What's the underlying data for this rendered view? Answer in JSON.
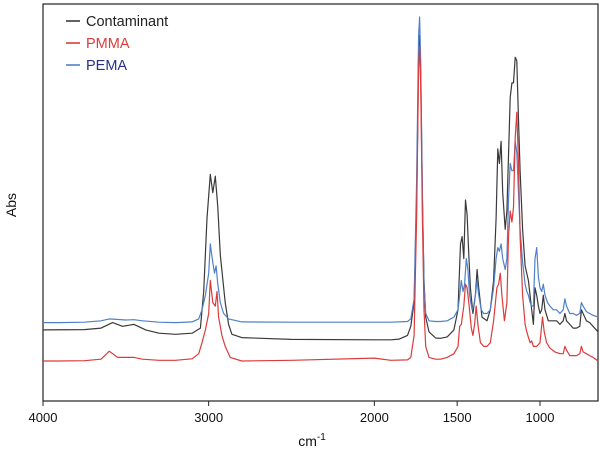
{
  "chart_data": {
    "type": "line",
    "xlabel": "cm",
    "xlabel_sup": "-1",
    "ylabel": "Abs",
    "x_reversed": true,
    "xlim": [
      4000,
      650
    ],
    "ylim": [
      0,
      100
    ],
    "x_ticks": [
      4000,
      3000,
      2000,
      1500,
      1000
    ],
    "x_tick_labels": [
      "4000",
      "3000",
      "2000",
      "1500",
      "1000"
    ],
    "grid": false,
    "legend_position": "top-left",
    "series": [
      {
        "name": "Contaminant",
        "color": "#3a3a3a",
        "points": [
          [
            4000,
            14.5
          ],
          [
            3750,
            14.6
          ],
          [
            3650,
            15
          ],
          [
            3580,
            16.5
          ],
          [
            3520,
            15.5
          ],
          [
            3450,
            16
          ],
          [
            3380,
            14.5
          ],
          [
            3300,
            13.6
          ],
          [
            3200,
            13.3
          ],
          [
            3100,
            13.6
          ],
          [
            3050,
            15
          ],
          [
            3030,
            25
          ],
          [
            3010,
            45
          ],
          [
            2990,
            57
          ],
          [
            2975,
            52
          ],
          [
            2960,
            56.5
          ],
          [
            2945,
            48
          ],
          [
            2930,
            35
          ],
          [
            2900,
            22
          ],
          [
            2880,
            16
          ],
          [
            2860,
            13.3
          ],
          [
            2800,
            12.4
          ],
          [
            2500,
            11.9
          ],
          [
            2000,
            11.8
          ],
          [
            1900,
            11.8
          ],
          [
            1850,
            12
          ],
          [
            1800,
            13
          ],
          [
            1780,
            15.5
          ],
          [
            1760,
            22
          ],
          [
            1745,
            48
          ],
          [
            1733,
            90
          ],
          [
            1727,
            95
          ],
          [
            1720,
            85
          ],
          [
            1710,
            50
          ],
          [
            1700,
            28
          ],
          [
            1690,
            18
          ],
          [
            1670,
            14
          ],
          [
            1630,
            12.3
          ],
          [
            1600,
            12.2
          ],
          [
            1560,
            12.6
          ],
          [
            1520,
            14.5
          ],
          [
            1495,
            20
          ],
          [
            1480,
            38
          ],
          [
            1470,
            40
          ],
          [
            1460,
            34
          ],
          [
            1450,
            50
          ],
          [
            1440,
            46
          ],
          [
            1430,
            35
          ],
          [
            1420,
            26
          ],
          [
            1405,
            19
          ],
          [
            1390,
            24
          ],
          [
            1380,
            31
          ],
          [
            1370,
            26
          ],
          [
            1350,
            18
          ],
          [
            1320,
            17
          ],
          [
            1300,
            20
          ],
          [
            1280,
            28
          ],
          [
            1265,
            45
          ],
          [
            1255,
            64
          ],
          [
            1245,
            60
          ],
          [
            1235,
            66
          ],
          [
            1225,
            52
          ],
          [
            1210,
            42
          ],
          [
            1200,
            47
          ],
          [
            1190,
            62
          ],
          [
            1180,
            78
          ],
          [
            1170,
            82
          ],
          [
            1160,
            82
          ],
          [
            1150,
            89
          ],
          [
            1140,
            88
          ],
          [
            1130,
            72
          ],
          [
            1120,
            58
          ],
          [
            1105,
            42
          ],
          [
            1090,
            32
          ],
          [
            1070,
            28
          ],
          [
            1050,
            20
          ],
          [
            1040,
            16
          ],
          [
            1030,
            26
          ],
          [
            1020,
            24
          ],
          [
            1010,
            21
          ],
          [
            1000,
            19
          ],
          [
            990,
            20
          ],
          [
            980,
            24
          ],
          [
            970,
            20
          ],
          [
            950,
            17
          ],
          [
            920,
            17
          ],
          [
            900,
            17
          ],
          [
            880,
            16
          ],
          [
            860,
            17
          ],
          [
            850,
            19
          ],
          [
            840,
            17
          ],
          [
            820,
            16
          ],
          [
            800,
            15
          ],
          [
            780,
            15
          ],
          [
            760,
            15.5
          ],
          [
            750,
            20
          ],
          [
            740,
            19
          ],
          [
            720,
            17
          ],
          [
            700,
            16.5
          ],
          [
            680,
            15.5
          ],
          [
            650,
            14
          ]
        ]
      },
      {
        "name": "PMMA",
        "color": "#dd3b3b",
        "points": [
          [
            4000,
            6
          ],
          [
            3900,
            6
          ],
          [
            3750,
            6.1
          ],
          [
            3650,
            6.5
          ],
          [
            3600,
            8.7
          ],
          [
            3550,
            7
          ],
          [
            3450,
            7
          ],
          [
            3400,
            6.5
          ],
          [
            3300,
            6.2
          ],
          [
            3200,
            6.2
          ],
          [
            3100,
            6.6
          ],
          [
            3060,
            8
          ],
          [
            3040,
            11
          ],
          [
            3020,
            14.5
          ],
          [
            3000,
            19
          ],
          [
            2990,
            28
          ],
          [
            2975,
            22
          ],
          [
            2960,
            21
          ],
          [
            2950,
            25
          ],
          [
            2940,
            18
          ],
          [
            2920,
            13
          ],
          [
            2900,
            10
          ],
          [
            2870,
            7
          ],
          [
            2800,
            6
          ],
          [
            2500,
            6.2
          ],
          [
            2000,
            6.8
          ],
          [
            1900,
            6.2
          ],
          [
            1800,
            6.3
          ],
          [
            1780,
            7
          ],
          [
            1760,
            13
          ],
          [
            1745,
            45
          ],
          [
            1733,
            86
          ],
          [
            1727,
            92
          ],
          [
            1720,
            82
          ],
          [
            1710,
            45
          ],
          [
            1700,
            20
          ],
          [
            1690,
            10
          ],
          [
            1670,
            7
          ],
          [
            1630,
            6.5
          ],
          [
            1600,
            6.5
          ],
          [
            1560,
            7
          ],
          [
            1520,
            8
          ],
          [
            1495,
            10
          ],
          [
            1485,
            15.5
          ],
          [
            1475,
            16
          ],
          [
            1460,
            21
          ],
          [
            1450,
            27
          ],
          [
            1440,
            26
          ],
          [
            1430,
            22
          ],
          [
            1415,
            15
          ],
          [
            1405,
            13
          ],
          [
            1395,
            16
          ],
          [
            1385,
            21
          ],
          [
            1375,
            16
          ],
          [
            1360,
            11
          ],
          [
            1340,
            10
          ],
          [
            1320,
            10
          ],
          [
            1300,
            11
          ],
          [
            1280,
            17
          ],
          [
            1260,
            26
          ],
          [
            1250,
            27
          ],
          [
            1240,
            30
          ],
          [
            1230,
            24
          ],
          [
            1215,
            17
          ],
          [
            1200,
            22
          ],
          [
            1190,
            40
          ],
          [
            1180,
            47
          ],
          [
            1170,
            44
          ],
          [
            1160,
            48
          ],
          [
            1150,
            67
          ],
          [
            1140,
            74
          ],
          [
            1130,
            60
          ],
          [
            1120,
            40
          ],
          [
            1105,
            24
          ],
          [
            1090,
            16
          ],
          [
            1080,
            14
          ],
          [
            1070,
            12.5
          ],
          [
            1060,
            11
          ],
          [
            1050,
            11.5
          ],
          [
            1040,
            10
          ],
          [
            1020,
            10
          ],
          [
            1000,
            11
          ],
          [
            985,
            18
          ],
          [
            975,
            14
          ],
          [
            960,
            11
          ],
          [
            940,
            9.5
          ],
          [
            910,
            8.5
          ],
          [
            880,
            8
          ],
          [
            860,
            8
          ],
          [
            850,
            10
          ],
          [
            840,
            9
          ],
          [
            820,
            7.5
          ],
          [
            800,
            7.5
          ],
          [
            780,
            7.5
          ],
          [
            760,
            8
          ],
          [
            750,
            10
          ],
          [
            740,
            8.5
          ],
          [
            720,
            8
          ],
          [
            700,
            7.5
          ],
          [
            680,
            7
          ],
          [
            650,
            6
          ]
        ]
      },
      {
        "name": "PEMA",
        "color": "#5080c8",
        "points": [
          [
            4000,
            16.5
          ],
          [
            3900,
            16.5
          ],
          [
            3750,
            16.6
          ],
          [
            3650,
            17
          ],
          [
            3600,
            17.5
          ],
          [
            3500,
            17.2
          ],
          [
            3450,
            17.3
          ],
          [
            3400,
            17
          ],
          [
            3300,
            16.6
          ],
          [
            3200,
            16.5
          ],
          [
            3100,
            16.7
          ],
          [
            3060,
            17.5
          ],
          [
            3040,
            20
          ],
          [
            3020,
            24
          ],
          [
            3000,
            30
          ],
          [
            2990,
            38
          ],
          [
            2985,
            36
          ],
          [
            2975,
            33
          ],
          [
            2965,
            30
          ],
          [
            2955,
            32
          ],
          [
            2945,
            27
          ],
          [
            2930,
            22
          ],
          [
            2910,
            19
          ],
          [
            2880,
            17.5
          ],
          [
            2800,
            16.7
          ],
          [
            2500,
            16.6
          ],
          [
            2000,
            16.6
          ],
          [
            1900,
            16.6
          ],
          [
            1800,
            16.8
          ],
          [
            1780,
            17.5
          ],
          [
            1760,
            23
          ],
          [
            1745,
            55
          ],
          [
            1733,
            95
          ],
          [
            1727,
            100
          ],
          [
            1720,
            88
          ],
          [
            1710,
            52
          ],
          [
            1700,
            27
          ],
          [
            1690,
            19
          ],
          [
            1670,
            17
          ],
          [
            1630,
            16.8
          ],
          [
            1600,
            16.8
          ],
          [
            1560,
            17
          ],
          [
            1520,
            18
          ],
          [
            1495,
            20
          ],
          [
            1485,
            24
          ],
          [
            1475,
            28
          ],
          [
            1465,
            25
          ],
          [
            1455,
            27
          ],
          [
            1445,
            34
          ],
          [
            1435,
            31
          ],
          [
            1425,
            24
          ],
          [
            1410,
            20
          ],
          [
            1400,
            21
          ],
          [
            1390,
            24
          ],
          [
            1380,
            28
          ],
          [
            1370,
            24
          ],
          [
            1355,
            20
          ],
          [
            1340,
            19
          ],
          [
            1320,
            19
          ],
          [
            1300,
            20
          ],
          [
            1280,
            26
          ],
          [
            1265,
            34
          ],
          [
            1255,
            37
          ],
          [
            1245,
            36
          ],
          [
            1235,
            38
          ],
          [
            1225,
            34
          ],
          [
            1210,
            31
          ],
          [
            1200,
            34
          ],
          [
            1190,
            50
          ],
          [
            1180,
            60
          ],
          [
            1170,
            58
          ],
          [
            1160,
            58
          ],
          [
            1150,
            66
          ],
          [
            1140,
            63
          ],
          [
            1130,
            52
          ],
          [
            1120,
            42
          ],
          [
            1105,
            33
          ],
          [
            1090,
            27
          ],
          [
            1080,
            25
          ],
          [
            1070,
            24
          ],
          [
            1060,
            22
          ],
          [
            1050,
            21
          ],
          [
            1040,
            21
          ],
          [
            1030,
            34
          ],
          [
            1020,
            37
          ],
          [
            1010,
            29
          ],
          [
            1000,
            26
          ],
          [
            990,
            25
          ],
          [
            980,
            27
          ],
          [
            970,
            24
          ],
          [
            955,
            22
          ],
          [
            940,
            21
          ],
          [
            920,
            20
          ],
          [
            900,
            20
          ],
          [
            880,
            19
          ],
          [
            860,
            20
          ],
          [
            850,
            23
          ],
          [
            840,
            21
          ],
          [
            820,
            19
          ],
          [
            800,
            19
          ],
          [
            780,
            18.5
          ],
          [
            760,
            19
          ],
          [
            750,
            22
          ],
          [
            740,
            21
          ],
          [
            720,
            19.5
          ],
          [
            700,
            19
          ],
          [
            680,
            18.5
          ],
          [
            650,
            18
          ]
        ]
      }
    ]
  }
}
